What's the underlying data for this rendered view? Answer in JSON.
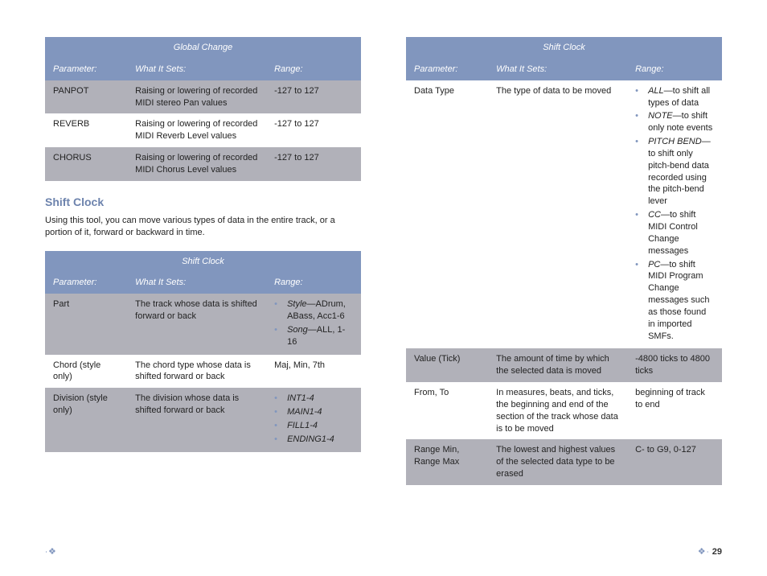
{
  "colors": {
    "header_bg": "#8196be",
    "header_text": "#ffffff",
    "band_a": "#b1b1b9",
    "band_b": "#ffffff",
    "heading": "#6d83ad",
    "bullet": "#8196be"
  },
  "global_change": {
    "title": "Global Change",
    "headers": [
      "Parameter:",
      "What It Sets:",
      "Range:"
    ],
    "rows": [
      {
        "param": "PANPOT",
        "what": "Raising or lowering of recorded MIDI stereo Pan values",
        "range": "-127 to 127"
      },
      {
        "param": "REVERB",
        "what": "Raising or lowering of recorded MIDI Reverb Level values",
        "range": "-127 to 127"
      },
      {
        "param": "CHORUS",
        "what": "Raising or lowering of recorded MIDI Chorus Level values",
        "range": "-127 to 127"
      }
    ]
  },
  "shift_clock_intro": {
    "heading": "Shift Clock",
    "text": "Using this tool, you can move various types of data in the entire track, or a portion of it, forward or backward in time."
  },
  "shift_clock_left": {
    "title": "Shift Clock",
    "headers": [
      "Parameter:",
      "What It Sets:",
      "Range:"
    ],
    "rows": [
      {
        "param": "Part",
        "what": "The track whose data is shifted forward or back",
        "range_opts": [
          {
            "label": "Style",
            "desc": "—ADrum, ABass, Acc1-6"
          },
          {
            "label": "Song",
            "desc": "—ALL, 1-16"
          }
        ]
      },
      {
        "param": "Chord (style only)",
        "what": "The chord type whose data is shifted forward or back",
        "range_text": "Maj, Min, 7th"
      },
      {
        "param": "Division (style only)",
        "what": "The division whose data is shifted forward or back",
        "range_opts": [
          {
            "label": "INT1-4",
            "desc": ""
          },
          {
            "label": "MAIN1-4",
            "desc": ""
          },
          {
            "label": "FILL1-4",
            "desc": ""
          },
          {
            "label": "ENDING1-4",
            "desc": ""
          }
        ]
      }
    ]
  },
  "shift_clock_right": {
    "title": "Shift Clock",
    "headers": [
      "Parameter:",
      "What It Sets:",
      "Range:"
    ],
    "rows": [
      {
        "param": "Data Type",
        "what": "The type of data to be moved",
        "range_opts": [
          {
            "label": "ALL",
            "desc": "—to shift all types of data"
          },
          {
            "label": "NOTE",
            "desc": "—to shift only note events"
          },
          {
            "label": "PITCH BEND",
            "desc": "—to shift only pitch-bend data recorded using the pitch-bend lever"
          },
          {
            "label": "CC",
            "desc": "—to shift MIDI Control Change messages"
          },
          {
            "label": "PC",
            "desc": "—to shift MIDI Program Change messages such as those found in imported SMFs."
          }
        ]
      },
      {
        "param": "Value (Tick)",
        "what": "The amount of time by which the selected data is moved",
        "range_text": "-4800 ticks to 4800 ticks"
      },
      {
        "param": "From, To",
        "what": "In measures, beats, and ticks, the beginning and end of the section of the track whose data is to be moved",
        "range_text": "beginning of track to end"
      },
      {
        "param": "Range Min, Range Max",
        "what": "The lowest and highest values of the selected data type to be erased",
        "range_text": "C- to G9, 0-127"
      }
    ]
  },
  "footer": {
    "left_deco": "∙❖",
    "right_deco": "❖∙",
    "page_number": "29"
  }
}
